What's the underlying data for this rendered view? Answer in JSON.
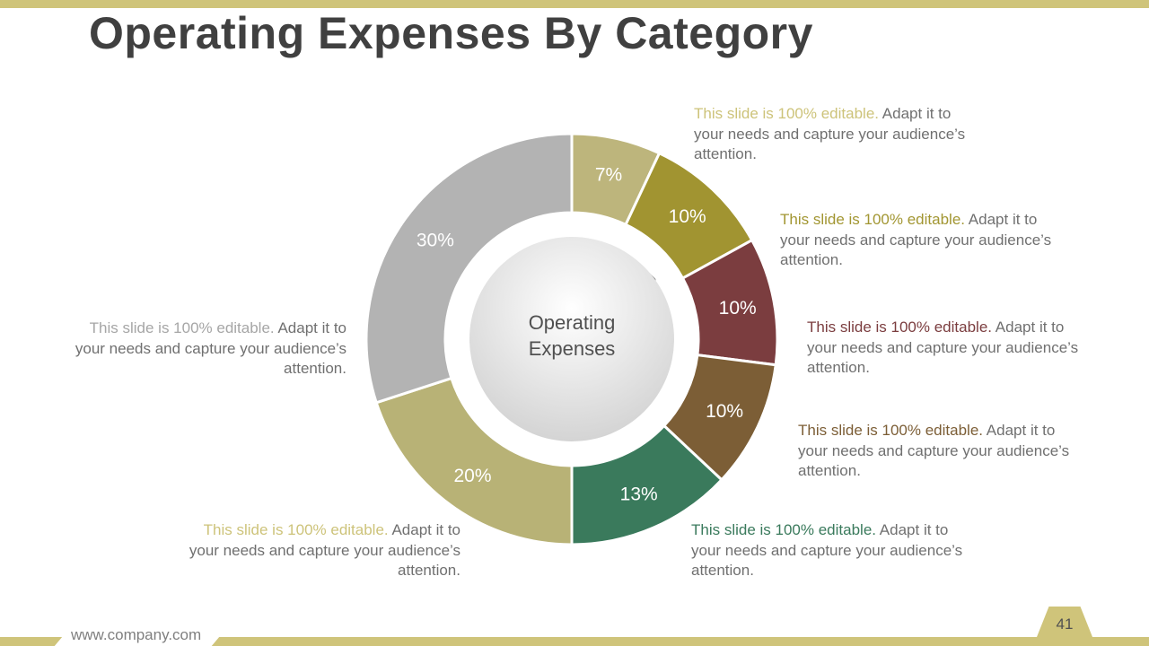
{
  "slide": {
    "title": "Operating Expenses By Category",
    "footer_url": "www.company.com",
    "page_number": "41"
  },
  "chart_data": {
    "type": "pie",
    "variant": "donut",
    "center_label": "Operating Expenses",
    "slices": [
      {
        "label": "7%",
        "value": 7,
        "color": "#bdb57c"
      },
      {
        "label": "10%",
        "value": 10,
        "color": "#a19431"
      },
      {
        "label": "10%",
        "value": 10,
        "color": "#7b3d3f"
      },
      {
        "label": "10%",
        "value": 10,
        "color": "#7c5e36"
      },
      {
        "label": "13%",
        "value": 13,
        "color": "#3a7a5c"
      },
      {
        "label": "20%",
        "value": 20,
        "color": "#b8b276"
      },
      {
        "label": "30%",
        "value": 30,
        "color": "#b3b3b3"
      }
    ]
  },
  "descriptions": [
    {
      "highlight": "This slide is 100% editable.",
      "rest": " Adapt it to your needs and capture your audience’s attention.",
      "color": "#cdc37a"
    },
    {
      "highlight": "This slide is 100% editable.",
      "rest": " Adapt it to your needs and capture your audience’s attention.",
      "color": "#a29632"
    },
    {
      "highlight": "This slide is 100% editable.",
      "rest": " Adapt it to your needs and capture your audience’s attention.",
      "color": "#7b3d3f"
    },
    {
      "highlight": "This slide is 100% editable.",
      "rest": " Adapt it to your needs and capture your audience’s attention.",
      "color": "#7c5e36"
    },
    {
      "highlight": "This slide is 100% editable.",
      "rest": " Adapt it to your needs and capture your audience’s attention.",
      "color": "#3a7a5c"
    },
    {
      "highlight": "This slide is 100% editable.",
      "rest": " Adapt it to your needs and capture your audience’s attention.",
      "color": "#cdc37a"
    },
    {
      "highlight": "This slide is 100% editable.",
      "rest": " Adapt it to your needs and capture your audience’s attention.",
      "color": "#a6a6a6"
    }
  ]
}
